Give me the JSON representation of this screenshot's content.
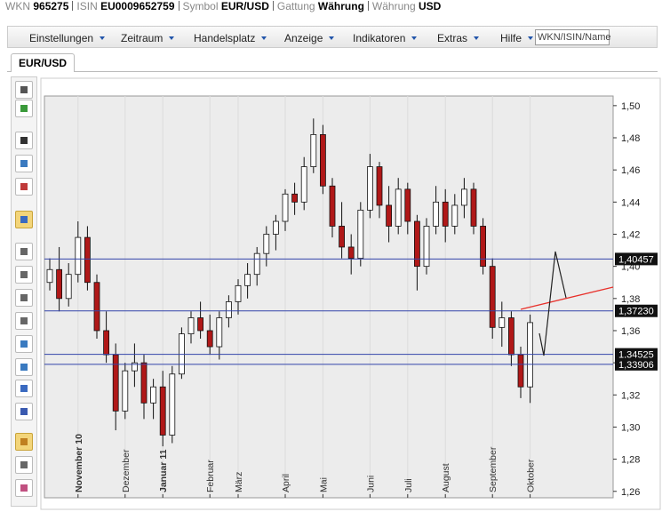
{
  "header": {
    "items": [
      {
        "label": "WKN",
        "value": "965275"
      },
      {
        "label": "ISIN",
        "value": "EU0009652759"
      },
      {
        "label": "Symbol",
        "value": "EUR/USD"
      },
      {
        "label": "Gattung",
        "value": "Währung"
      },
      {
        "label": "Währung",
        "value": "USD"
      }
    ]
  },
  "menu": {
    "items": [
      "Einstellungen",
      "Zeitraum",
      "Handelsplatz",
      "Anzeige",
      "Indikatoren",
      "Extras",
      "Hilfe"
    ],
    "search_placeholder": "WKN/ISIN/Name"
  },
  "tab": "EUR/USD",
  "chart_data": {
    "type": "candlestick",
    "up_color": "#ffffff",
    "down_color": "#b01818",
    "edge_color": "#111111",
    "categories": [
      null,
      null,
      null,
      "November 10",
      null,
      null,
      null,
      null,
      "Dezember",
      null,
      null,
      null,
      "Januar 11",
      null,
      null,
      null,
      null,
      "Februar",
      null,
      null,
      "März",
      null,
      null,
      null,
      null,
      "April",
      null,
      null,
      null,
      "Mai",
      null,
      null,
      null,
      null,
      "Juni",
      null,
      null,
      null,
      "Juli",
      null,
      null,
      null,
      "August",
      null,
      null,
      null,
      null,
      "September",
      null,
      null,
      null,
      "Oktober"
    ],
    "bold_categories": [
      "November 10",
      "Januar 11"
    ],
    "open": [
      1.39,
      1.398,
      1.38,
      1.395,
      1.418,
      1.39,
      1.36,
      1.345,
      1.31,
      1.335,
      1.34,
      1.315,
      1.325,
      1.295,
      1.333,
      1.358,
      1.368,
      1.36,
      1.35,
      1.368,
      1.378,
      1.388,
      1.395,
      1.408,
      1.42,
      1.428,
      1.445,
      1.44,
      1.462,
      1.482,
      1.45,
      1.425,
      1.412,
      1.405,
      1.435,
      1.462,
      1.438,
      1.425,
      1.448,
      1.428,
      1.4,
      1.425,
      1.44,
      1.425,
      1.438,
      1.448,
      1.425,
      1.4,
      1.362,
      1.368,
      1.345,
      1.325
    ],
    "high": [
      1.405,
      1.412,
      1.402,
      1.428,
      1.425,
      1.395,
      1.372,
      1.352,
      1.34,
      1.352,
      1.345,
      1.33,
      1.335,
      1.338,
      1.362,
      1.372,
      1.378,
      1.37,
      1.372,
      1.382,
      1.392,
      1.402,
      1.412,
      1.425,
      1.432,
      1.448,
      1.452,
      1.468,
      1.492,
      1.488,
      1.455,
      1.44,
      1.42,
      1.44,
      1.47,
      1.465,
      1.45,
      1.455,
      1.452,
      1.432,
      1.43,
      1.45,
      1.448,
      1.445,
      1.455,
      1.452,
      1.43,
      1.405,
      1.378,
      1.372,
      1.35,
      1.37
    ],
    "low": [
      1.385,
      1.372,
      1.375,
      1.39,
      1.385,
      1.355,
      1.34,
      1.298,
      1.305,
      1.325,
      1.305,
      1.305,
      1.288,
      1.29,
      1.33,
      1.352,
      1.355,
      1.345,
      1.342,
      1.362,
      1.37,
      1.38,
      1.388,
      1.4,
      1.41,
      1.422,
      1.432,
      1.435,
      1.458,
      1.445,
      1.418,
      1.405,
      1.395,
      1.4,
      1.43,
      1.43,
      1.415,
      1.42,
      1.42,
      1.385,
      1.395,
      1.42,
      1.415,
      1.42,
      1.43,
      1.42,
      1.395,
      1.355,
      1.35,
      1.338,
      1.318,
      1.315
    ],
    "close": [
      1.398,
      1.38,
      1.395,
      1.418,
      1.39,
      1.36,
      1.345,
      1.31,
      1.335,
      1.34,
      1.315,
      1.325,
      1.295,
      1.333,
      1.358,
      1.368,
      1.36,
      1.35,
      1.368,
      1.378,
      1.388,
      1.395,
      1.408,
      1.42,
      1.428,
      1.445,
      1.44,
      1.462,
      1.482,
      1.45,
      1.425,
      1.412,
      1.405,
      1.435,
      1.462,
      1.438,
      1.425,
      1.448,
      1.428,
      1.4,
      1.425,
      1.44,
      1.425,
      1.438,
      1.448,
      1.425,
      1.4,
      1.362,
      1.368,
      1.345,
      1.325,
      1.365
    ],
    "ylim": [
      1.256,
      1.506
    ],
    "yticks": [
      {
        "value": 1.26,
        "label": "1,26"
      },
      {
        "value": 1.28,
        "label": "1,28"
      },
      {
        "value": 1.3,
        "label": "1,30"
      },
      {
        "value": 1.32,
        "label": "1,32"
      },
      {
        "value": 1.34,
        "label": "1,34"
      },
      {
        "value": 1.36,
        "label": "1,36"
      },
      {
        "value": 1.38,
        "label": "1,38"
      },
      {
        "value": 1.4,
        "label": "1,40"
      },
      {
        "value": 1.42,
        "label": "1,42"
      },
      {
        "value": 1.44,
        "label": "1,44"
      },
      {
        "value": 1.46,
        "label": "1,46"
      },
      {
        "value": 1.48,
        "label": "1,48"
      },
      {
        "value": 1.5,
        "label": "1,50"
      }
    ],
    "levels": [
      {
        "value": 1.40457,
        "label": "1,40457"
      },
      {
        "value": 1.3723,
        "label": "1,37230"
      },
      {
        "value": 1.34525,
        "label": "1,34525"
      },
      {
        "value": 1.33906,
        "label": "1,33906"
      }
    ],
    "level_color": "#3344aa"
  }
}
